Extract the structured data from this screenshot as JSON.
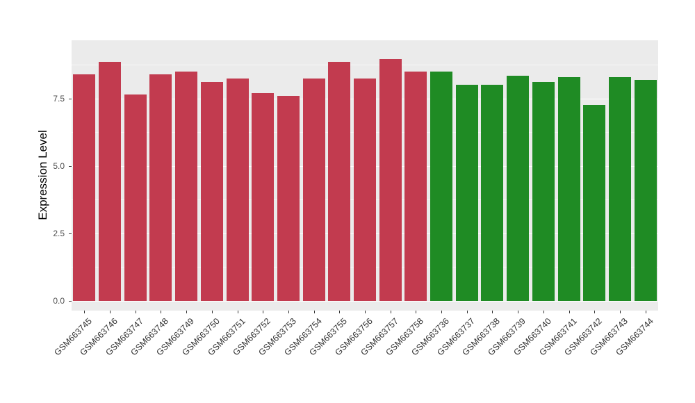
{
  "chart_data": {
    "type": "bar",
    "title": "",
    "xlabel": "",
    "ylabel": "Expression Level",
    "categories": [
      "GSM663745",
      "GSM663746",
      "GSM663747",
      "GSM663748",
      "GSM663749",
      "GSM663750",
      "GSM663751",
      "GSM663752",
      "GSM663753",
      "GSM663754",
      "GSM663755",
      "GSM663756",
      "GSM663757",
      "GSM663758",
      "GSM663736",
      "GSM663737",
      "GSM663738",
      "GSM663739",
      "GSM663740",
      "GSM663741",
      "GSM663742",
      "GSM663743",
      "GSM663744"
    ],
    "values": [
      8.4,
      8.85,
      7.65,
      8.4,
      8.5,
      8.1,
      8.25,
      7.7,
      7.6,
      8.25,
      8.85,
      8.25,
      8.95,
      8.5,
      8.5,
      8.0,
      8.0,
      8.35,
      8.1,
      8.3,
      7.25,
      8.3,
      8.2
    ],
    "group_membership": [
      "group1",
      "group1",
      "group1",
      "group1",
      "group1",
      "group1",
      "group1",
      "group1",
      "group1",
      "group1",
      "group1",
      "group1",
      "group1",
      "group1",
      "group2",
      "group2",
      "group2",
      "group2",
      "group2",
      "group2",
      "group2",
      "group2",
      "group2"
    ],
    "group_colors": {
      "group1": "#C23B4F",
      "group2": "#1F8B24"
    },
    "yticks": [
      0,
      2.5,
      5,
      7.5
    ],
    "ytick_labels": [
      "0.0",
      "2.5",
      "5.0",
      "7.5"
    ],
    "minor_ticks": [
      1.25,
      3.75,
      6.25,
      8.75
    ],
    "ylim": [
      0,
      9.4
    ],
    "legend": "none",
    "grid": "on",
    "panel_background": "#EBEBEB",
    "grid_color": "#FFFFFF",
    "axis_text_color": "#4D4D4D"
  }
}
